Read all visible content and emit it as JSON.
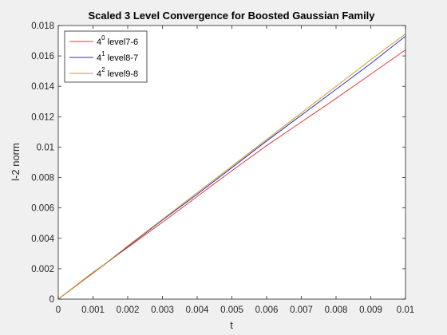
{
  "chart_data": {
    "type": "line",
    "title": "Scaled 3 Level Convergence for Boosted Gaussian Family",
    "xlabel": "t",
    "ylabel": "l-2 norm",
    "xlim": [
      0,
      0.01
    ],
    "ylim": [
      0,
      0.018
    ],
    "x_ticks": [
      "0",
      "0.001",
      "0.002",
      "0.003",
      "0.004",
      "0.005",
      "0.006",
      "0.007",
      "0.008",
      "0.009",
      "0.01"
    ],
    "y_ticks": [
      "0",
      "0.002",
      "0.004",
      "0.006",
      "0.008",
      "0.01",
      "0.012",
      "0.014",
      "0.016",
      "0.018"
    ],
    "legend_position": "top-left",
    "series": [
      {
        "name": "4^0 level7-6",
        "base": "4",
        "exp": "0",
        "label": " level7-6",
        "color": "#e8363a",
        "x": [
          0,
          0.001,
          0.002,
          0.003,
          0.004,
          0.005,
          0.006,
          0.007,
          0.008,
          0.009,
          0.01
        ],
        "y": [
          0,
          0.00175,
          0.0034,
          0.00505,
          0.00675,
          0.00845,
          0.0101,
          0.01165,
          0.0132,
          0.0148,
          0.0164
        ]
      },
      {
        "name": "4^1 level8-7",
        "base": "4",
        "exp": "1",
        "label": " level8-7",
        "color": "#2d2dcc",
        "x": [
          0,
          0.001,
          0.002,
          0.003,
          0.004,
          0.005,
          0.006,
          0.007,
          0.008,
          0.009,
          0.01
        ],
        "y": [
          0,
          0.0017,
          0.00345,
          0.0052,
          0.0069,
          0.00865,
          0.0104,
          0.0121,
          0.0138,
          0.0155,
          0.0173
        ]
      },
      {
        "name": "4^2 level9-8",
        "base": "4",
        "exp": "2",
        "label": " level9-8",
        "color": "#c8a018",
        "x": [
          0,
          0.001,
          0.002,
          0.003,
          0.004,
          0.005,
          0.006,
          0.007,
          0.008,
          0.009,
          0.01
        ],
        "y": [
          0,
          0.0017,
          0.0035,
          0.00525,
          0.007,
          0.00875,
          0.0105,
          0.01225,
          0.014,
          0.01575,
          0.01745
        ]
      }
    ]
  }
}
